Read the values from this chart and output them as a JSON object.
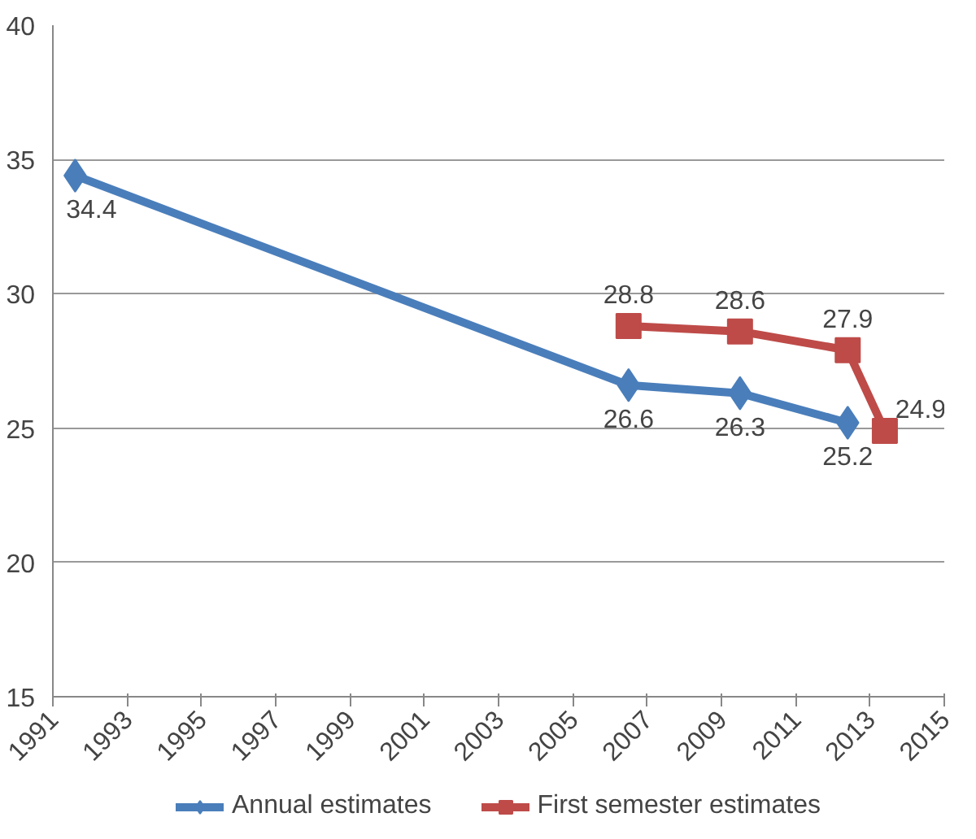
{
  "chart_data": {
    "type": "line",
    "series": [
      {
        "name": "Annual estimates",
        "color": "#4a7ebb",
        "marker": "diamond",
        "x": [
          1991.6,
          2006.5,
          2009.5,
          2012.4
        ],
        "values": [
          34.4,
          26.6,
          26.3,
          25.2
        ]
      },
      {
        "name": "First semester estimates",
        "color": "#be4b48",
        "marker": "square",
        "x": [
          2006.5,
          2009.5,
          2012.4,
          2013.4
        ],
        "values": [
          28.8,
          28.6,
          27.9,
          24.9
        ]
      }
    ],
    "xlim": [
      1991,
      2015
    ],
    "xticks": [
      1991,
      1993,
      1995,
      1997,
      1999,
      2001,
      2003,
      2005,
      2007,
      2009,
      2011,
      2013,
      2015
    ],
    "ylim": [
      15,
      40
    ],
    "yticks": [
      15,
      20,
      25,
      30,
      35,
      40
    ],
    "grid": "y",
    "legend": "bottom",
    "data_labels": true,
    "line_style": "solid"
  }
}
